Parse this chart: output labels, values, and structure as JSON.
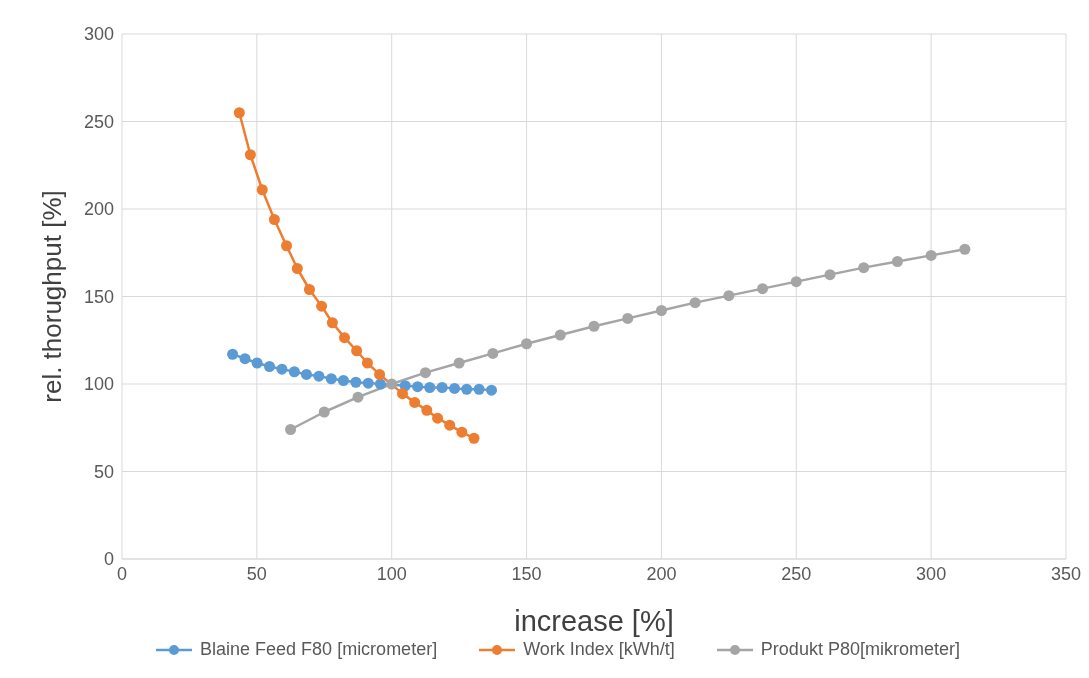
{
  "chart_data": {
    "type": "line",
    "xlabel": "increase [%]",
    "ylabel": "rel. thorughput [%]",
    "xlim": [
      0,
      350
    ],
    "xticks": [
      0,
      50,
      100,
      150,
      200,
      250,
      300,
      350
    ],
    "ylim": [
      0,
      300
    ],
    "yticks": [
      0,
      50,
      100,
      150,
      200,
      250,
      300
    ],
    "grid": true,
    "legend": "bottom",
    "marker": "circle",
    "line_style": "solid",
    "series": [
      {
        "name": "Blaine Feed F80 [micrometer]",
        "color": "#5b9bd5",
        "x": [
          41,
          45.6,
          50.1,
          54.7,
          59.3,
          63.9,
          68.4,
          73,
          77.6,
          82.1,
          86.7,
          91.3,
          95.8,
          100.4,
          105,
          109.6,
          114.1,
          118.7,
          123.3,
          127.8,
          132.4,
          137
        ],
        "values": [
          117,
          114.5,
          112,
          110,
          108.5,
          107,
          105.5,
          104.5,
          103,
          102,
          101,
          100.5,
          100,
          null,
          99,
          98.5,
          98,
          98,
          97.5,
          97,
          97,
          96.5
        ]
      },
      {
        "name": "Work Index [kWh/t]",
        "color": "#ed7d31",
        "x": [
          43.5,
          47.6,
          52,
          56.5,
          61,
          65,
          69.5,
          74,
          78,
          82.5,
          87,
          91,
          95.5,
          100,
          104,
          108.5,
          113,
          117,
          121.5,
          126,
          130.5
        ],
        "values": [
          255,
          231,
          211,
          194,
          179,
          166,
          154,
          144.5,
          135,
          126.5,
          119,
          112,
          105.5,
          null,
          94.5,
          89.5,
          85,
          80.5,
          76.5,
          72.5,
          69
        ]
      },
      {
        "name": "Produkt P80[mikrometer]",
        "color": "#a5a5a5",
        "x": [
          62.5,
          75,
          87.5,
          100,
          112.5,
          125,
          137.5,
          150,
          162.5,
          175,
          187.5,
          200,
          212.5,
          225,
          237.5,
          250,
          262.5,
          275,
          287.5,
          300,
          312.5
        ],
        "values": [
          74,
          84,
          92.5,
          100,
          106.5,
          112,
          117.5,
          123,
          128,
          133,
          137.5,
          142,
          146.5,
          150.5,
          154.5,
          158.5,
          162.5,
          166.5,
          170,
          173.5,
          177
        ]
      }
    ]
  }
}
